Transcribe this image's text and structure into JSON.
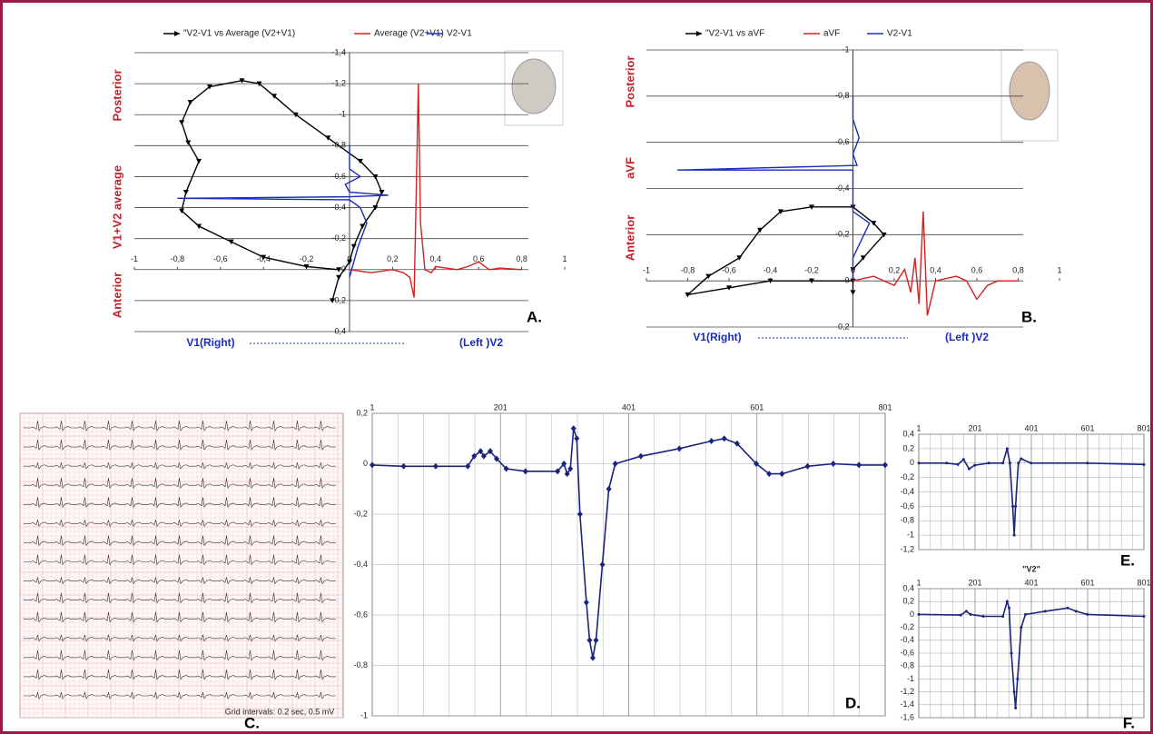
{
  "chart_data": [
    {
      "type": "line",
      "panel_label": "A.",
      "axes": "origin",
      "y_reversed": true,
      "grid": true,
      "side_labels": [
        "Posterior",
        "V1+V2 average",
        "Anterior"
      ],
      "bottom_labels": [
        "V1(Right)",
        "(Left )V2"
      ],
      "xlim": [
        -1,
        1
      ],
      "ylim": [
        -1.4,
        0.4
      ],
      "xticks": [
        -1,
        {
          "value": -0.8,
          "label": "-0,8"
        },
        {
          "value": -0.6,
          "label": "-0,6"
        },
        {
          "value": -0.4,
          "label": "-0,4"
        },
        {
          "value": -0.2,
          "label": "-0,2"
        },
        0,
        {
          "value": 0.2,
          "label": "0,2"
        },
        {
          "value": 0.4,
          "label": "0,4"
        },
        {
          "value": 0.6,
          "label": "0,6"
        },
        {
          "value": 0.8,
          "label": "0,8"
        },
        1
      ],
      "yticks": [
        {
          "value": -1.4,
          "label": "-1,4"
        },
        {
          "value": -1.2,
          "label": "-1,2"
        },
        -1,
        {
          "value": -0.8,
          "label": "-0,8"
        },
        {
          "value": -0.6,
          "label": "-0,6"
        },
        {
          "value": -0.4,
          "label": "-0,4"
        },
        {
          "value": -0.2,
          "label": "-0,2"
        },
        0,
        {
          "value": 0.2,
          "label": "0,2"
        },
        {
          "value": 0.4,
          "label": "0,4"
        }
      ],
      "series": [
        {
          "name": "\"V2-V1 vs Average (V2+V1)",
          "color": "#000000",
          "marker": "triangle",
          "x": [
            -0.05,
            -0.2,
            -0.4,
            -0.55,
            -0.7,
            -0.78,
            -0.76,
            -0.7,
            -0.75,
            -0.78,
            -0.74,
            -0.65,
            -0.5,
            -0.42,
            -0.35,
            -0.25,
            -0.1,
            0.05,
            0.12,
            0.15,
            0.12,
            0.06,
            0.02,
            0.0,
            -0.05,
            -0.08
          ],
          "values": [
            0.0,
            -0.02,
            -0.08,
            -0.18,
            -0.28,
            -0.38,
            -0.5,
            -0.7,
            -0.82,
            -0.95,
            -1.08,
            -1.18,
            -1.22,
            -1.2,
            -1.12,
            -1.0,
            -0.85,
            -0.7,
            -0.6,
            -0.5,
            -0.4,
            -0.28,
            -0.15,
            -0.05,
            0.05,
            0.2
          ]
        },
        {
          "name": "Average (V2+V1)",
          "color": "#d42020",
          "marker": null,
          "x": [
            0.0,
            0.1,
            0.2,
            0.25,
            0.28,
            0.3,
            0.31,
            0.32,
            0.33,
            0.35,
            0.38,
            0.4,
            0.5,
            0.55,
            0.6,
            0.65,
            0.7,
            0.8
          ],
          "values": [
            0.0,
            0.02,
            0.0,
            0.02,
            0.05,
            0.18,
            -0.5,
            -1.2,
            -0.3,
            0.0,
            0.02,
            -0.02,
            0.0,
            -0.02,
            -0.05,
            0.0,
            -0.01,
            0.0
          ]
        },
        {
          "name": "V2-V1",
          "color": "#1a2bc0",
          "marker": null,
          "x": [
            0.0,
            0.02,
            0.04,
            0.08,
            0.05,
            0.0,
            -0.8,
            0.0,
            0.18,
            0.0,
            -0.02,
            0.05,
            0.0,
            0.0
          ],
          "values": [
            0.05,
            -0.05,
            -0.15,
            -0.3,
            -0.4,
            -0.45,
            -0.46,
            -0.47,
            -0.48,
            -0.5,
            -0.55,
            -0.6,
            -0.65,
            -0.8
          ]
        }
      ]
    },
    {
      "type": "line",
      "panel_label": "B.",
      "axes": "origin",
      "y_reversed": true,
      "grid": true,
      "side_labels": [
        "Posterior",
        "aVF",
        "Anterior"
      ],
      "bottom_labels": [
        "V1(Right)",
        "(Left )V2"
      ],
      "xlim": [
        -1,
        1
      ],
      "ylim": [
        -1,
        0.2
      ],
      "xticks": [
        -1,
        {
          "value": -0.8,
          "label": "-0,8"
        },
        {
          "value": -0.6,
          "label": "-0,6"
        },
        {
          "value": -0.4,
          "label": "-0,4"
        },
        {
          "value": -0.2,
          "label": "-0,2"
        },
        0,
        {
          "value": 0.2,
          "label": "0,2"
        },
        {
          "value": 0.4,
          "label": "0,4"
        },
        {
          "value": 0.6,
          "label": "0,6"
        },
        {
          "value": 0.8,
          "label": "0,8"
        },
        1
      ],
      "yticks": [
        -1,
        {
          "value": -0.8,
          "label": "-0,8"
        },
        {
          "value": -0.6,
          "label": "-0,6"
        },
        {
          "value": -0.4,
          "label": "-0,4"
        },
        {
          "value": -0.2,
          "label": "-0,2"
        },
        0,
        {
          "value": 0.2,
          "label": "0,2"
        }
      ],
      "series": [
        {
          "name": "\"V2-V1 vs aVF",
          "color": "#000000",
          "marker": "triangle",
          "x": [
            0.0,
            -0.2,
            -0.4,
            -0.6,
            -0.8,
            -0.7,
            -0.55,
            -0.45,
            -0.35,
            -0.2,
            0.0,
            0.1,
            0.15,
            0.05,
            0.0,
            0.0
          ],
          "values": [
            0.0,
            0.0,
            0.0,
            0.03,
            0.06,
            -0.02,
            -0.1,
            -0.22,
            -0.3,
            -0.32,
            -0.32,
            -0.25,
            -0.2,
            -0.1,
            -0.05,
            0.05
          ]
        },
        {
          "name": "aVF",
          "color": "#d42020",
          "marker": null,
          "x": [
            0.0,
            0.1,
            0.2,
            0.25,
            0.28,
            0.3,
            0.32,
            0.34,
            0.36,
            0.4,
            0.5,
            0.55,
            0.6,
            0.65,
            0.7,
            0.8
          ],
          "values": [
            0.0,
            -0.02,
            0.02,
            -0.05,
            0.05,
            -0.1,
            0.1,
            -0.3,
            0.15,
            0.0,
            -0.02,
            0.0,
            0.08,
            0.02,
            0.0,
            0.0
          ]
        },
        {
          "name": "V2-V1",
          "color": "#1a2bc0",
          "marker": null,
          "x": [
            0.0,
            0.0,
            0.08,
            0.0,
            0.0,
            -0.85,
            0.02,
            0.0,
            0.03,
            0.0,
            0.0
          ],
          "values": [
            0.0,
            -0.1,
            -0.25,
            -0.3,
            -0.48,
            -0.48,
            -0.5,
            -0.55,
            -0.62,
            -0.7,
            -0.8
          ]
        }
      ]
    },
    {
      "type": "ecg",
      "panel_label": "C.",
      "note": "Grid intervals: 0.2 sec, 0.5 mV"
    },
    {
      "type": "line",
      "panel_label": "D.",
      "axes": "frame",
      "grid": true,
      "xlim": [
        1,
        801
      ],
      "ylim": [
        -1,
        0.2
      ],
      "xticks": [
        1,
        201,
        401,
        601,
        801
      ],
      "yticks": [
        {
          "value": 0.2,
          "label": "0,2"
        },
        0,
        {
          "value": -0.2,
          "label": "-0,2"
        },
        {
          "value": -0.4,
          "label": "-0,4"
        },
        {
          "value": -0.6,
          "label": "-0,6"
        },
        {
          "value": -0.8,
          "label": "-0,8"
        },
        -1
      ],
      "series": [
        {
          "color": "#1a237e",
          "marker": "diamond",
          "x": [
            1,
            50,
            100,
            150,
            160,
            170,
            175,
            185,
            195,
            210,
            240,
            290,
            300,
            305,
            310,
            315,
            320,
            325,
            335,
            340,
            345,
            350,
            360,
            370,
            380,
            420,
            480,
            530,
            550,
            570,
            600,
            620,
            640,
            680,
            720,
            760,
            801
          ],
          "values": [
            -0.005,
            -0.01,
            -0.01,
            -0.01,
            0.03,
            0.05,
            0.03,
            0.05,
            0.02,
            -0.02,
            -0.03,
            -0.03,
            0.0,
            -0.04,
            -0.02,
            0.14,
            0.1,
            -0.2,
            -0.55,
            -0.7,
            -0.77,
            -0.7,
            -0.4,
            -0.1,
            0.0,
            0.03,
            0.06,
            0.09,
            0.1,
            0.08,
            0.0,
            -0.04,
            -0.04,
            -0.01,
            0.0,
            -0.005,
            -0.005
          ]
        }
      ]
    },
    {
      "type": "line",
      "panel_label": "E.",
      "axes": "frame",
      "grid": true,
      "xlim": [
        1,
        801
      ],
      "ylim": [
        -1.2,
        0.4
      ],
      "xticks": [
        1,
        201,
        401,
        601,
        801
      ],
      "yticks": [
        {
          "value": 0.4,
          "label": "0,4"
        },
        {
          "value": 0.2,
          "label": "0,2"
        },
        0,
        {
          "value": -0.2,
          "label": "-0,2"
        },
        {
          "value": -0.4,
          "label": "-0,4"
        },
        {
          "value": -0.6,
          "label": "-0,6"
        },
        {
          "value": -0.8,
          "label": "-0,8"
        },
        -1,
        {
          "value": -1.2,
          "label": "-1,2"
        }
      ],
      "series": [
        {
          "color": "#1a237e",
          "marker": "dot",
          "x": [
            1,
            100,
            140,
            160,
            180,
            200,
            250,
            300,
            315,
            325,
            335,
            340,
            345,
            355,
            365,
            400,
            600,
            801
          ],
          "values": [
            0.0,
            0.0,
            -0.02,
            0.05,
            -0.08,
            -0.03,
            0.0,
            0.0,
            0.2,
            0.0,
            -0.6,
            -1.0,
            -0.6,
            0.0,
            0.06,
            0.0,
            0.0,
            -0.02
          ]
        }
      ]
    },
    {
      "type": "line",
      "panel_label": "F.",
      "title": "\"V2\"",
      "axes": "frame",
      "grid": true,
      "xlim": [
        1,
        801
      ],
      "ylim": [
        -1.6,
        0.4
      ],
      "xticks": [
        1,
        201,
        401,
        601,
        801
      ],
      "yticks": [
        {
          "value": 0.4,
          "label": "0,4"
        },
        {
          "value": 0.2,
          "label": "0,2"
        },
        0,
        {
          "value": -0.2,
          "label": "-0,2"
        },
        {
          "value": -0.4,
          "label": "-0,4"
        },
        {
          "value": -0.6,
          "label": "-0,6"
        },
        {
          "value": -0.8,
          "label": "-0,8"
        },
        -1,
        {
          "value": -1.2,
          "label": "-1,2"
        },
        {
          "value": -1.4,
          "label": "-1,4"
        },
        {
          "value": -1.6,
          "label": "-1,6"
        }
      ],
      "series": [
        {
          "color": "#1a237e",
          "marker": "dot",
          "x": [
            1,
            150,
            170,
            185,
            230,
            300,
            315,
            322,
            330,
            340,
            345,
            352,
            365,
            380,
            450,
            530,
            560,
            600,
            801
          ],
          "values": [
            0.0,
            -0.01,
            0.05,
            0.0,
            -0.03,
            -0.03,
            0.2,
            0.1,
            -0.6,
            -1.2,
            -1.45,
            -1.0,
            -0.2,
            0.0,
            0.05,
            0.1,
            0.05,
            0.0,
            -0.03
          ]
        }
      ]
    }
  ]
}
